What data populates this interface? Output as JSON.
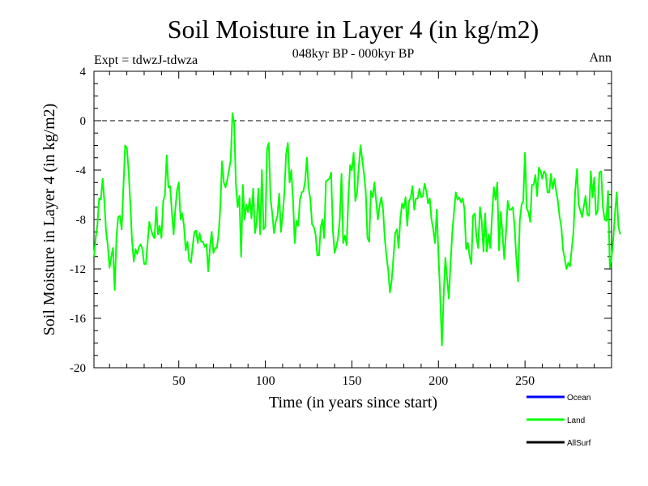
{
  "chart_data": {
    "type": "line",
    "title": "Soil Moisture in Layer 4 (in kg/m2)",
    "subtitle": "048kyr BP - 000kyr BP",
    "experiment": "Expt = tdwzJ-tdwza",
    "season": "Ann",
    "xlabel": "Time (in years since start)",
    "ylabel": "Soil Moisture in Layer 4 (in kg/m2)",
    "xlim": [
      1,
      300
    ],
    "ylim": [
      -20,
      4
    ],
    "xticks": [
      50,
      100,
      150,
      200,
      250
    ],
    "yticks": [
      4,
      0,
      -4,
      -8,
      -12,
      -16,
      -20
    ],
    "reference_line": {
      "y": 0,
      "style": "dashed"
    },
    "legend": {
      "position": "bottom-right",
      "entries": [
        {
          "label": "Ocean",
          "color": "#0000ff"
        },
        {
          "label": "Land",
          "color": "#00ff00"
        },
        {
          "label": "AllSurf",
          "color": "#000000"
        }
      ]
    },
    "series": [
      {
        "name": "Land",
        "color": "#00ff00",
        "x_start": 1,
        "x_step": 1,
        "values": [
          -11,
          -9.5,
          -8.4,
          -6.3,
          -6.4,
          -4.7,
          -6.5,
          -9,
          -10.1,
          -11.9,
          -11,
          -10.3,
          -13.7,
          -9.4,
          -7.8,
          -7.7,
          -8.8,
          -5.5,
          -2,
          -2.2,
          -4,
          -6.7,
          -9.7,
          -11.4,
          -10.4,
          -10.8,
          -10.2,
          -10,
          -10.4,
          -11.6,
          -11.6,
          -9.8,
          -8.2,
          -8.8,
          -9.3,
          -9.5,
          -7,
          -9.2,
          -8.5,
          -9.5,
          -6.5,
          -6,
          -2.8,
          -5.4,
          -5.3,
          -7.4,
          -9.2,
          -7.2,
          -5.6,
          -5,
          -8,
          -7.5,
          -8.5,
          -10.5,
          -9.8,
          -11.3,
          -11.5,
          -10.2,
          -9,
          -8.9,
          -9.9,
          -9.1,
          -9.8,
          -9.8,
          -10.2,
          -10,
          -12.2,
          -10.3,
          -9,
          -10.7,
          -10.3,
          -10.3,
          -9.2,
          -7,
          -3.3,
          -5,
          -5.4,
          -4.8,
          -4,
          -3.2,
          0.6,
          -0.2,
          -5.1,
          -7,
          -6.1,
          -11,
          -5.2,
          -8,
          -6.8,
          -7.4,
          -6.3,
          -7.9,
          -5.5,
          -9.1,
          -8.2,
          -5.5,
          -9.2,
          -4,
          -8.8,
          -8.6,
          -2.3,
          -1.8,
          -6.3,
          -7.5,
          -9.1,
          -8.2,
          -7.7,
          -5.9,
          -9,
          -7.7,
          -5.8,
          -2.7,
          -1.8,
          -5,
          -4,
          -6.5,
          -9.9,
          -8.1,
          -8.5,
          -6.4,
          -5.8,
          -5.7,
          -4.9,
          -3,
          -5.5,
          -6.3,
          -8.4,
          -8.6,
          -9.2,
          -10.9,
          -10.9,
          -8.6,
          -8,
          -9.5,
          -4.9,
          -4.8,
          -4.7,
          -4.2,
          -8.8,
          -10.7,
          -10.2,
          -9.5,
          -8,
          -4.3,
          -9.9,
          -9.3,
          -10.1,
          -6,
          -3.6,
          -4,
          -2.6,
          -6.5,
          -5.8,
          -3.7,
          -2,
          -3.2,
          -4.3,
          -5.7,
          -9.5,
          -9.8,
          -5.7,
          -6.2,
          -5,
          -6.5,
          -8,
          -6.9,
          -6.2,
          -7.2,
          -9.5,
          -11,
          -12.1,
          -13.9,
          -12.9,
          -11.1,
          -9.1,
          -8.8,
          -10.3,
          -7.9,
          -6.7,
          -7.1,
          -6.2,
          -8.5,
          -6.5,
          -6.2,
          -5.3,
          -7.2,
          -6.3,
          -6.3,
          -5.5,
          -6.2,
          -6.1,
          -5.1,
          -5.7,
          -6.7,
          -6.3,
          -8,
          -8.8,
          -9.9,
          -7.2,
          -10.8,
          -14.1,
          -18.2,
          -14.2,
          -11.1,
          -12.8,
          -14.4,
          -11.6,
          -9,
          -7.4,
          -5.8,
          -6.4,
          -6.2,
          -6.6,
          -6.3,
          -7.1,
          -10.4,
          -9.9,
          -11,
          -11.6,
          -7.7,
          -7.5,
          -9.5,
          -10.3,
          -7,
          -8.1,
          -10.6,
          -7.5,
          -10.6,
          -9.2,
          -10.3,
          -7.6,
          -5.4,
          -6.4,
          -5,
          -10.5,
          -7.4,
          -9.2,
          -11.2,
          -9.2,
          -6.5,
          -7.2,
          -7.2,
          -7,
          -8.6,
          -11.2,
          -13,
          -8.1,
          -6.8,
          -6.5,
          -2.6,
          -7.1,
          -7.4,
          -8.2,
          -5.2,
          -5.2,
          -4.4,
          -6.1,
          -3.8,
          -4.1,
          -4.7,
          -4.1,
          -4.3,
          -5.8,
          -5.8,
          -4.3,
          -5.5,
          -4.7,
          -5.7,
          -6.5,
          -7.8,
          -8.6,
          -10.5,
          -11.2,
          -12,
          -11.5,
          -11.8,
          -10.4,
          -9,
          -5.7,
          -3.9,
          -6.8,
          -7.3,
          -7.8,
          -6.9,
          -6.1,
          -7.6,
          -7.7,
          -4.1,
          -6.2,
          -4.6,
          -7.6,
          -7.3,
          -4.2,
          -4.1,
          -7,
          -8,
          -8.1,
          -5.7,
          -11.9,
          -11.1,
          -9.6,
          -7.4,
          -5.8,
          -8.6,
          -9.2
        ]
      }
    ]
  }
}
